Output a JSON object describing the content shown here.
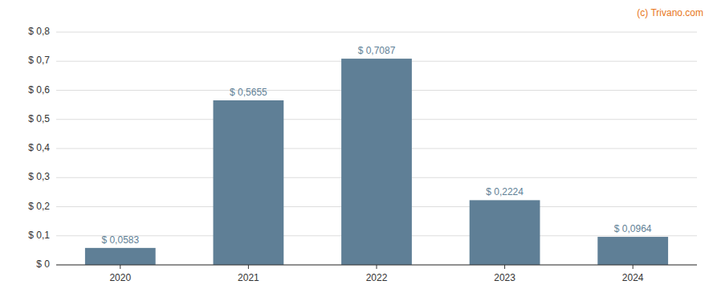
{
  "chart_data": {
    "type": "bar",
    "categories": [
      "2020",
      "2021",
      "2022",
      "2023",
      "2024"
    ],
    "values": [
      0.0583,
      0.5655,
      0.7087,
      0.2224,
      0.0964
    ],
    "value_labels": [
      "$ 0,0583",
      "$ 0,5655",
      "$ 0,7087",
      "$ 0,2224",
      "$ 0,0964"
    ],
    "color": "#5f7f96",
    "ylim": [
      0,
      0.8
    ],
    "yticks": [
      {
        "value": 0.0,
        "label": "$ 0"
      },
      {
        "value": 0.1,
        "label": "$ 0,1"
      },
      {
        "value": 0.2,
        "label": "$ 0,2"
      },
      {
        "value": 0.3,
        "label": "$ 0,3"
      },
      {
        "value": 0.4,
        "label": "$ 0,4"
      },
      {
        "value": 0.5,
        "label": "$ 0,5"
      },
      {
        "value": 0.6,
        "label": "$ 0,6"
      },
      {
        "value": 0.7,
        "label": "$ 0,7"
      },
      {
        "value": 0.8,
        "label": "$ 0,8"
      }
    ],
    "grid": true,
    "data_labels": true,
    "annotations": [
      {
        "text": "(c) Trivano.com",
        "color": "#e87722"
      }
    ]
  }
}
